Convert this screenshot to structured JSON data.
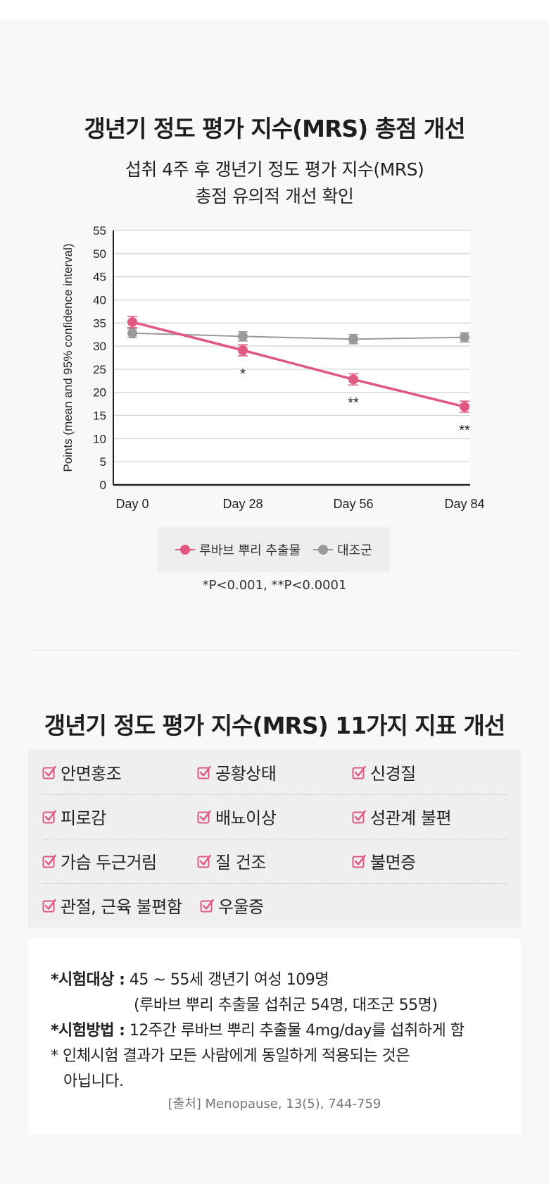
{
  "section1": {
    "title": "갱년기 정도 평가 지수(MRS) 총점 개선",
    "subtitle_line1": "섭취 4주 후 갱년기 정도 평가 지수(MRS)",
    "subtitle_line2": "총점 유의적 개선 확인"
  },
  "chart_data": {
    "type": "line",
    "title": "",
    "xlabel": "",
    "ylabel": "Points (mean and 95% confidence interval)",
    "categories": [
      "Day 0",
      "Day 28",
      "Day 56",
      "Day 84"
    ],
    "ylim": [
      0,
      55
    ],
    "yticks": [
      0,
      5,
      10,
      15,
      20,
      25,
      30,
      35,
      40,
      45,
      50,
      55
    ],
    "grid": true,
    "series": [
      {
        "name": "루바브 뿌리 추출물",
        "color": "#e05880",
        "values": [
          35.2,
          29.1,
          22.8,
          16.9
        ],
        "ci": [
          [
            34.0,
            36.4
          ],
          [
            27.9,
            30.3
          ],
          [
            21.6,
            24.0
          ],
          [
            15.7,
            18.1
          ]
        ],
        "annotations": [
          "",
          "*",
          "**",
          "**"
        ]
      },
      {
        "name": "대조군",
        "color": "#9a9a9a",
        "values": [
          32.8,
          32.1,
          31.5,
          31.9
        ],
        "ci": [
          [
            31.8,
            33.8
          ],
          [
            31.1,
            33.1
          ],
          [
            30.5,
            32.5
          ],
          [
            30.9,
            32.9
          ]
        ]
      }
    ],
    "legend_position": "bottom",
    "footnote": "*P<0.001, **P<0.0001"
  },
  "section2": {
    "title": "갱년기 정도 평가 지수(MRS) 11가지 지표 개선",
    "items": [
      [
        "안면홍조",
        "공황상태",
        "신경질"
      ],
      [
        "피로감",
        "배뇨이상",
        "성관계 불편"
      ],
      [
        "가슴 두근거림",
        "질 건조",
        "불면증"
      ],
      [
        "관절, 근육 불편함",
        "우울증",
        ""
      ]
    ],
    "check_color": "#e05880"
  },
  "notes": {
    "subject_label": "*시험대상 :",
    "subject_text": " 45 ~ 55세 갱년기 여성 109명",
    "subject_detail": "(루바브 뿌리 추출물 섭취군 54명, 대조군 55명)",
    "method_label": "*시험방법 :",
    "method_text": " 12주간 루바브 뿌리 추출물 4mg/day를 섭취하게 함",
    "disclaimer_line1": "* 인체시험 결과가 모든 사람에게 동일하게 적용되는 것은",
    "disclaimer_line2": "아닙니다.",
    "source": "[출처] Menopause, 13(5), 744-759"
  }
}
